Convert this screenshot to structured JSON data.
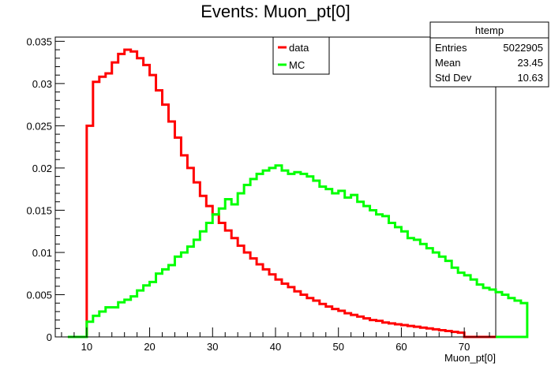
{
  "chart_data": {
    "type": "histogram",
    "title": "Events: Muon_pt[0]",
    "xlabel": "Muon_pt[0]",
    "ylabel": "",
    "xlim": [
      5,
      75
    ],
    "ylim": [
      0,
      0.0355
    ],
    "x_ticks": [
      "10",
      "20",
      "30",
      "40",
      "50",
      "60",
      "70"
    ],
    "y_ticks": [
      "0",
      "0.005",
      "0.01",
      "0.015",
      "0.02",
      "0.025",
      "0.03",
      "0.035"
    ],
    "bin_edges_start": 10,
    "bin_width": 1,
    "legend": {
      "placement": "top-center",
      "entries": [
        "data",
        "MC"
      ]
    },
    "stats_box": {
      "title": "htemp",
      "rows": [
        {
          "label": "Entries",
          "value": "5022905"
        },
        {
          "label": "Mean",
          "value": "23.45"
        },
        {
          "label": "Std Dev",
          "value": "10.63"
        }
      ]
    },
    "series": [
      {
        "name": "data",
        "color": "#ff0000",
        "values": [
          0.025,
          0.0302,
          0.0308,
          0.0312,
          0.0325,
          0.0335,
          0.034,
          0.0338,
          0.033,
          0.0322,
          0.031,
          0.0292,
          0.0275,
          0.0255,
          0.0236,
          0.0215,
          0.02,
          0.0183,
          0.0167,
          0.0155,
          0.0145,
          0.0135,
          0.0126,
          0.0117,
          0.0108,
          0.01,
          0.0093,
          0.0086,
          0.008,
          0.0074,
          0.0068,
          0.0063,
          0.0059,
          0.0054,
          0.005,
          0.0046,
          0.0043,
          0.0039,
          0.0036,
          0.0033,
          0.0031,
          0.0028,
          0.0026,
          0.0024,
          0.0022,
          0.002,
          0.0019,
          0.0017,
          0.0016,
          0.0015,
          0.0014,
          0.0013,
          0.0012,
          0.0011,
          0.001,
          0.0009,
          0.0008,
          0.0007,
          0.0006,
          0.0005
        ]
      },
      {
        "name": "MC",
        "color": "#00ff00",
        "values": [
          0.0018,
          0.0025,
          0.003,
          0.0035,
          0.0035,
          0.0041,
          0.0044,
          0.0048,
          0.0055,
          0.0061,
          0.0065,
          0.0075,
          0.008,
          0.0085,
          0.0095,
          0.01,
          0.0107,
          0.0115,
          0.0125,
          0.0135,
          0.0145,
          0.0152,
          0.0163,
          0.0157,
          0.017,
          0.018,
          0.0187,
          0.0193,
          0.0197,
          0.02,
          0.0203,
          0.0197,
          0.0193,
          0.0195,
          0.0193,
          0.019,
          0.0185,
          0.0178,
          0.0175,
          0.017,
          0.0173,
          0.0165,
          0.0168,
          0.016,
          0.0155,
          0.015,
          0.0145,
          0.0143,
          0.0135,
          0.013,
          0.0125,
          0.0117,
          0.0115,
          0.011,
          0.0105,
          0.01,
          0.0095,
          0.009,
          0.0082,
          0.0076,
          0.0073,
          0.0068,
          0.0062,
          0.0058,
          0.0056,
          0.0053,
          0.005,
          0.0046,
          0.0043,
          0.004
        ]
      }
    ]
  }
}
